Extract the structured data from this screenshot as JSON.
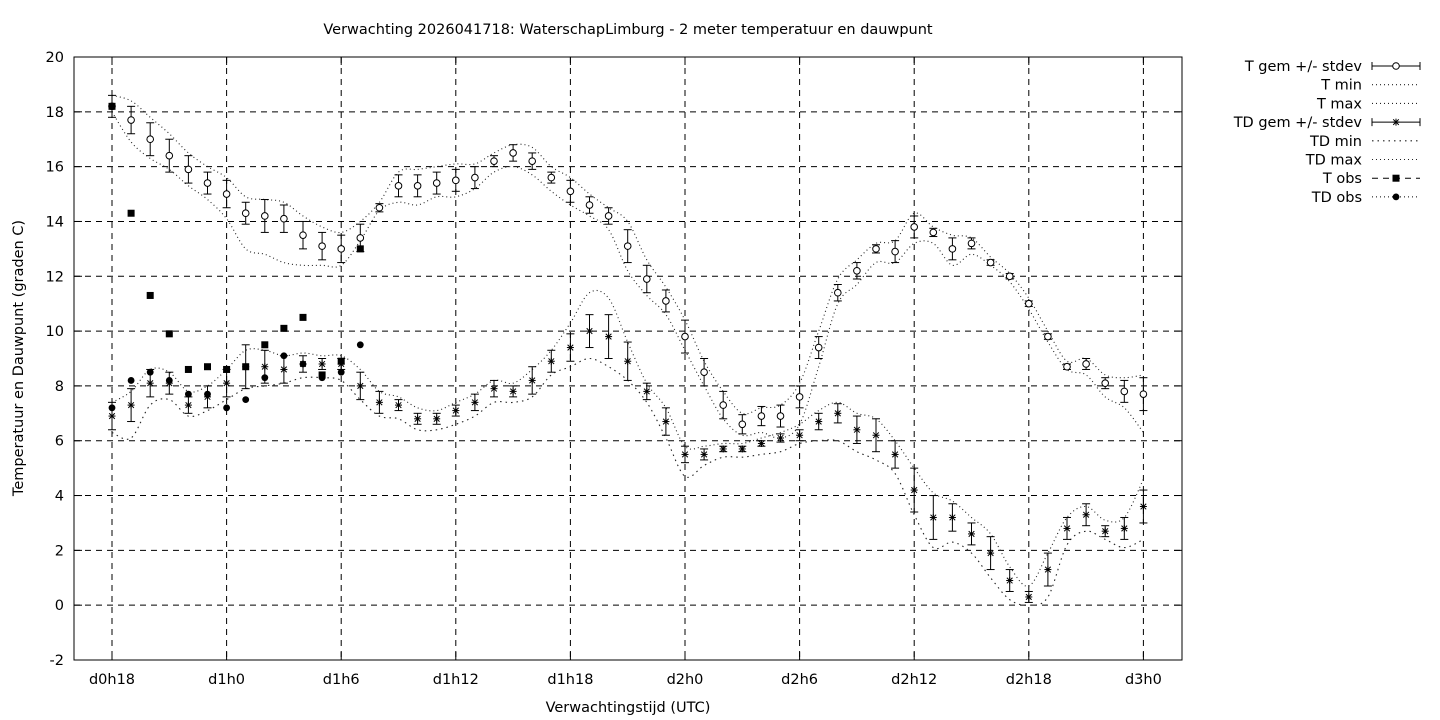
{
  "chart_data": {
    "type": "line",
    "title": "Verwachting 2026041718: WaterschapLimburg - 2 meter temperatuur en dauwpunt",
    "xlabel": "Verwachtingstijd (UTC)",
    "ylabel": "Temperatuur en Dauwpunt (graden C)",
    "ylim": [
      -2,
      20
    ],
    "yticks": [
      -2,
      0,
      2,
      4,
      6,
      8,
      10,
      12,
      14,
      16,
      18,
      20
    ],
    "xlim": [
      -0.5,
      56.5
    ],
    "xticks": [
      {
        "value": 0,
        "label": "d0h18"
      },
      {
        "value": 6,
        "label": "d1h0"
      },
      {
        "value": 12,
        "label": "d1h6"
      },
      {
        "value": 18,
        "label": "d1h12"
      },
      {
        "value": 24,
        "label": "d1h18"
      },
      {
        "value": 30,
        "label": "d2h0"
      },
      {
        "value": 36,
        "label": "d2h6"
      },
      {
        "value": 42,
        "label": "d2h12"
      },
      {
        "value": 48,
        "label": "d2h18"
      },
      {
        "value": 54,
        "label": "d3h0"
      }
    ],
    "grid": true,
    "legend_position": "outside-right",
    "legend": [
      {
        "label": "T gem +/- stdev",
        "style": "errorbar-open-circle"
      },
      {
        "label": "T min",
        "style": "dotted"
      },
      {
        "label": "T max",
        "style": "dotted"
      },
      {
        "label": "TD gem +/- stdev",
        "style": "errorbar-star"
      },
      {
        "label": "TD min",
        "style": "dotted-coarse"
      },
      {
        "label": "TD max",
        "style": "dotted"
      },
      {
        "label": "T obs",
        "style": "filled-square"
      },
      {
        "label": "TD obs",
        "style": "filled-circle"
      }
    ],
    "series": {
      "t_mean": {
        "x": [
          0,
          1,
          2,
          3,
          4,
          5,
          6,
          7,
          8,
          9,
          10,
          11,
          12,
          13,
          14,
          15,
          16,
          17,
          18,
          19,
          20,
          21,
          22,
          23,
          24,
          25,
          26,
          27,
          28,
          29,
          30,
          31,
          32,
          33,
          34,
          35,
          36,
          37,
          38,
          39,
          40,
          41,
          42,
          43,
          44,
          45,
          46,
          47,
          48,
          49,
          50,
          51,
          52,
          53,
          54
        ],
        "y": [
          18.2,
          17.7,
          17.0,
          16.4,
          15.9,
          15.4,
          15.0,
          14.3,
          14.2,
          14.1,
          13.5,
          13.1,
          13.0,
          13.4,
          14.5,
          15.3,
          15.3,
          15.4,
          15.5,
          15.6,
          16.2,
          16.5,
          16.2,
          15.6,
          15.1,
          14.6,
          14.2,
          13.1,
          11.9,
          11.1,
          9.8,
          8.5,
          7.3,
          6.6,
          6.9,
          6.9,
          7.6,
          9.4,
          11.4,
          12.2,
          13.0,
          12.9,
          13.8,
          13.6,
          13.0,
          13.2,
          12.5,
          12.0,
          11.0,
          9.8,
          8.7,
          8.8,
          8.1,
          7.8,
          7.7
        ],
        "stdev": [
          0.4,
          0.5,
          0.6,
          0.6,
          0.5,
          0.4,
          0.5,
          0.4,
          0.6,
          0.5,
          0.5,
          0.5,
          0.5,
          0.5,
          0.15,
          0.4,
          0.4,
          0.4,
          0.4,
          0.4,
          0.2,
          0.3,
          0.3,
          0.2,
          0.4,
          0.3,
          0.3,
          0.6,
          0.5,
          0.4,
          0.6,
          0.5,
          0.5,
          0.35,
          0.35,
          0.4,
          0.4,
          0.4,
          0.3,
          0.3,
          0.15,
          0.4,
          0.4,
          0.15,
          0.4,
          0.2,
          0.1,
          0.1,
          0.1,
          0.1,
          0.1,
          0.2,
          0.2,
          0.4,
          0.6
        ]
      },
      "t_min": {
        "x": [
          0,
          1,
          2,
          3,
          4,
          5,
          6,
          7,
          8,
          9,
          10,
          11,
          12,
          13,
          14,
          15,
          16,
          17,
          18,
          19,
          20,
          21,
          22,
          23,
          24,
          25,
          26,
          27,
          28,
          29,
          30,
          31,
          32,
          33,
          34,
          35,
          36,
          37,
          38,
          39,
          40,
          41,
          42,
          43,
          44,
          45,
          46,
          47,
          48,
          49,
          50,
          51,
          52,
          53,
          54
        ],
        "y": [
          18.0,
          16.9,
          16.3,
          15.9,
          15.3,
          14.8,
          14.1,
          13.0,
          12.8,
          12.5,
          12.4,
          12.4,
          12.4,
          13.3,
          14.4,
          14.7,
          14.6,
          14.9,
          14.9,
          15.2,
          15.8,
          16.0,
          15.7,
          15.1,
          14.6,
          14.2,
          13.7,
          12.2,
          11.3,
          10.6,
          9.3,
          8.0,
          6.8,
          6.2,
          6.3,
          6.1,
          6.6,
          8.7,
          11.0,
          11.7,
          12.5,
          12.5,
          13.2,
          13.2,
          12.4,
          12.8,
          12.4,
          11.8,
          10.8,
          9.6,
          8.6,
          8.4,
          7.6,
          7.2,
          6.3
        ]
      },
      "t_max": {
        "x": [
          0,
          1,
          2,
          3,
          4,
          5,
          6,
          7,
          8,
          9,
          10,
          11,
          12,
          13,
          14,
          15,
          16,
          17,
          18,
          19,
          20,
          21,
          22,
          23,
          24,
          25,
          26,
          27,
          28,
          29,
          30,
          31,
          32,
          33,
          34,
          35,
          36,
          37,
          38,
          39,
          40,
          41,
          42,
          43,
          44,
          45,
          46,
          47,
          48,
          49,
          50,
          51,
          52,
          53,
          54
        ],
        "y": [
          18.6,
          18.4,
          17.8,
          17.2,
          16.5,
          16.0,
          15.6,
          14.9,
          14.8,
          14.7,
          14.2,
          13.8,
          13.6,
          14.0,
          14.7,
          15.8,
          15.9,
          16.0,
          16.1,
          16.1,
          16.5,
          16.8,
          16.7,
          16.0,
          15.6,
          15.0,
          14.5,
          14.0,
          12.6,
          11.6,
          10.4,
          8.9,
          7.8,
          7.0,
          7.2,
          7.3,
          8.1,
          10.0,
          11.9,
          12.6,
          13.2,
          13.3,
          14.3,
          13.8,
          13.5,
          13.4,
          12.7,
          12.1,
          11.2,
          10.0,
          8.9,
          9.0,
          8.4,
          8.3,
          8.4
        ]
      },
      "td_mean": {
        "x": [
          0,
          1,
          2,
          3,
          4,
          5,
          6,
          7,
          8,
          9,
          10,
          11,
          12,
          13,
          14,
          15,
          16,
          17,
          18,
          19,
          20,
          21,
          22,
          23,
          24,
          25,
          26,
          27,
          28,
          29,
          30,
          31,
          32,
          33,
          34,
          35,
          36,
          37,
          38,
          39,
          40,
          41,
          42,
          43,
          44,
          45,
          46,
          47,
          48,
          49,
          50,
          51,
          52,
          53,
          54
        ],
        "y": [
          6.9,
          7.3,
          8.1,
          8.1,
          7.3,
          7.6,
          8.1,
          8.7,
          8.7,
          8.6,
          8.8,
          8.8,
          8.8,
          8.0,
          7.4,
          7.3,
          6.8,
          6.8,
          7.1,
          7.4,
          7.9,
          7.8,
          8.2,
          8.9,
          9.4,
          10.0,
          9.8,
          8.9,
          7.8,
          6.7,
          5.5,
          5.5,
          5.7,
          5.7,
          5.9,
          6.1,
          6.2,
          6.7,
          7.0,
          6.4,
          6.2,
          5.5,
          4.2,
          3.2,
          3.2,
          2.6,
          1.9,
          0.9,
          0.3,
          1.3,
          2.8,
          3.3,
          2.7,
          2.8,
          3.6
        ]
      },
      "td_stdev": [
        0.5,
        0.6,
        0.5,
        0.4,
        0.3,
        0.4,
        0.5,
        0.8,
        0.6,
        0.5,
        0.3,
        0.2,
        0.2,
        0.5,
        0.4,
        0.2,
        0.2,
        0.2,
        0.2,
        0.3,
        0.3,
        0.2,
        0.5,
        0.4,
        0.5,
        0.6,
        0.8,
        0.7,
        0.3,
        0.5,
        0.3,
        0.2,
        0.1,
        0.1,
        0.1,
        0.15,
        0.2,
        0.3,
        0.35,
        0.5,
        0.6,
        0.5,
        0.8,
        0.8,
        0.5,
        0.4,
        0.6,
        0.4,
        0.2,
        0.6,
        0.4,
        0.4,
        0.2,
        0.4,
        0.6
      ],
      "td_min": {
        "x": [
          0,
          1,
          2,
          3,
          4,
          5,
          6,
          7,
          8,
          9,
          10,
          11,
          12,
          13,
          14,
          15,
          16,
          17,
          18,
          19,
          20,
          21,
          22,
          23,
          24,
          25,
          26,
          27,
          28,
          29,
          30,
          31,
          32,
          33,
          34,
          35,
          36,
          37,
          38,
          39,
          40,
          41,
          42,
          43,
          44,
          45,
          46,
          47,
          48,
          49,
          50,
          51,
          52,
          53,
          54
        ],
        "y": [
          6.3,
          6.1,
          7.3,
          7.5,
          6.9,
          7.1,
          7.5,
          7.9,
          8.0,
          8.1,
          8.3,
          8.3,
          8.2,
          7.5,
          6.9,
          6.8,
          6.4,
          6.4,
          6.6,
          6.9,
          7.4,
          7.4,
          7.6,
          8.4,
          8.7,
          9.0,
          8.7,
          8.2,
          7.4,
          6.1,
          4.7,
          5.1,
          5.4,
          5.4,
          5.5,
          5.6,
          5.9,
          6.0,
          6.0,
          5.6,
          5.3,
          4.8,
          3.3,
          2.1,
          2.3,
          1.9,
          1.0,
          0.2,
          0.0,
          0.3,
          2.2,
          2.7,
          2.4,
          2.1,
          2.4
        ]
      },
      "td_max": {
        "x": [
          0,
          1,
          2,
          3,
          4,
          5,
          6,
          7,
          8,
          9,
          10,
          11,
          12,
          13,
          14,
          15,
          16,
          17,
          18,
          19,
          20,
          21,
          22,
          23,
          24,
          25,
          26,
          27,
          28,
          29,
          30,
          31,
          32,
          33,
          34,
          35,
          36,
          37,
          38,
          39,
          40,
          41,
          42,
          43,
          44,
          45,
          46,
          47,
          48,
          49,
          50,
          51,
          52,
          53,
          54
        ],
        "y": [
          7.4,
          7.8,
          8.6,
          8.5,
          7.8,
          8.0,
          8.6,
          9.3,
          9.3,
          9.1,
          9.2,
          9.1,
          9.1,
          8.6,
          7.8,
          7.6,
          7.2,
          7.1,
          7.4,
          7.7,
          8.2,
          8.1,
          8.6,
          9.3,
          10.3,
          11.4,
          11.2,
          9.6,
          8.1,
          7.2,
          5.8,
          5.8,
          5.9,
          5.9,
          6.1,
          6.3,
          6.6,
          7.1,
          7.4,
          7.0,
          6.8,
          6.0,
          5.0,
          4.1,
          3.8,
          3.2,
          2.6,
          1.4,
          0.7,
          1.9,
          3.2,
          3.6,
          3.1,
          3.2,
          4.6
        ]
      },
      "t_obs": {
        "x": [
          0,
          1,
          2,
          3,
          4,
          5,
          6,
          7,
          8,
          9,
          10,
          11,
          12,
          13
        ],
        "y": [
          18.2,
          14.3,
          11.3,
          9.9,
          8.6,
          8.7,
          8.6,
          8.7,
          9.5,
          10.1,
          10.5,
          8.4,
          8.9,
          13.0
        ]
      },
      "td_obs": {
        "x": [
          0,
          1,
          2,
          3,
          4,
          5,
          6,
          7,
          8,
          9,
          10,
          11,
          12,
          13
        ],
        "y": [
          7.2,
          8.2,
          8.5,
          8.2,
          7.7,
          7.7,
          7.2,
          7.5,
          8.3,
          9.1,
          8.8,
          8.3,
          8.5,
          9.5
        ]
      }
    }
  }
}
